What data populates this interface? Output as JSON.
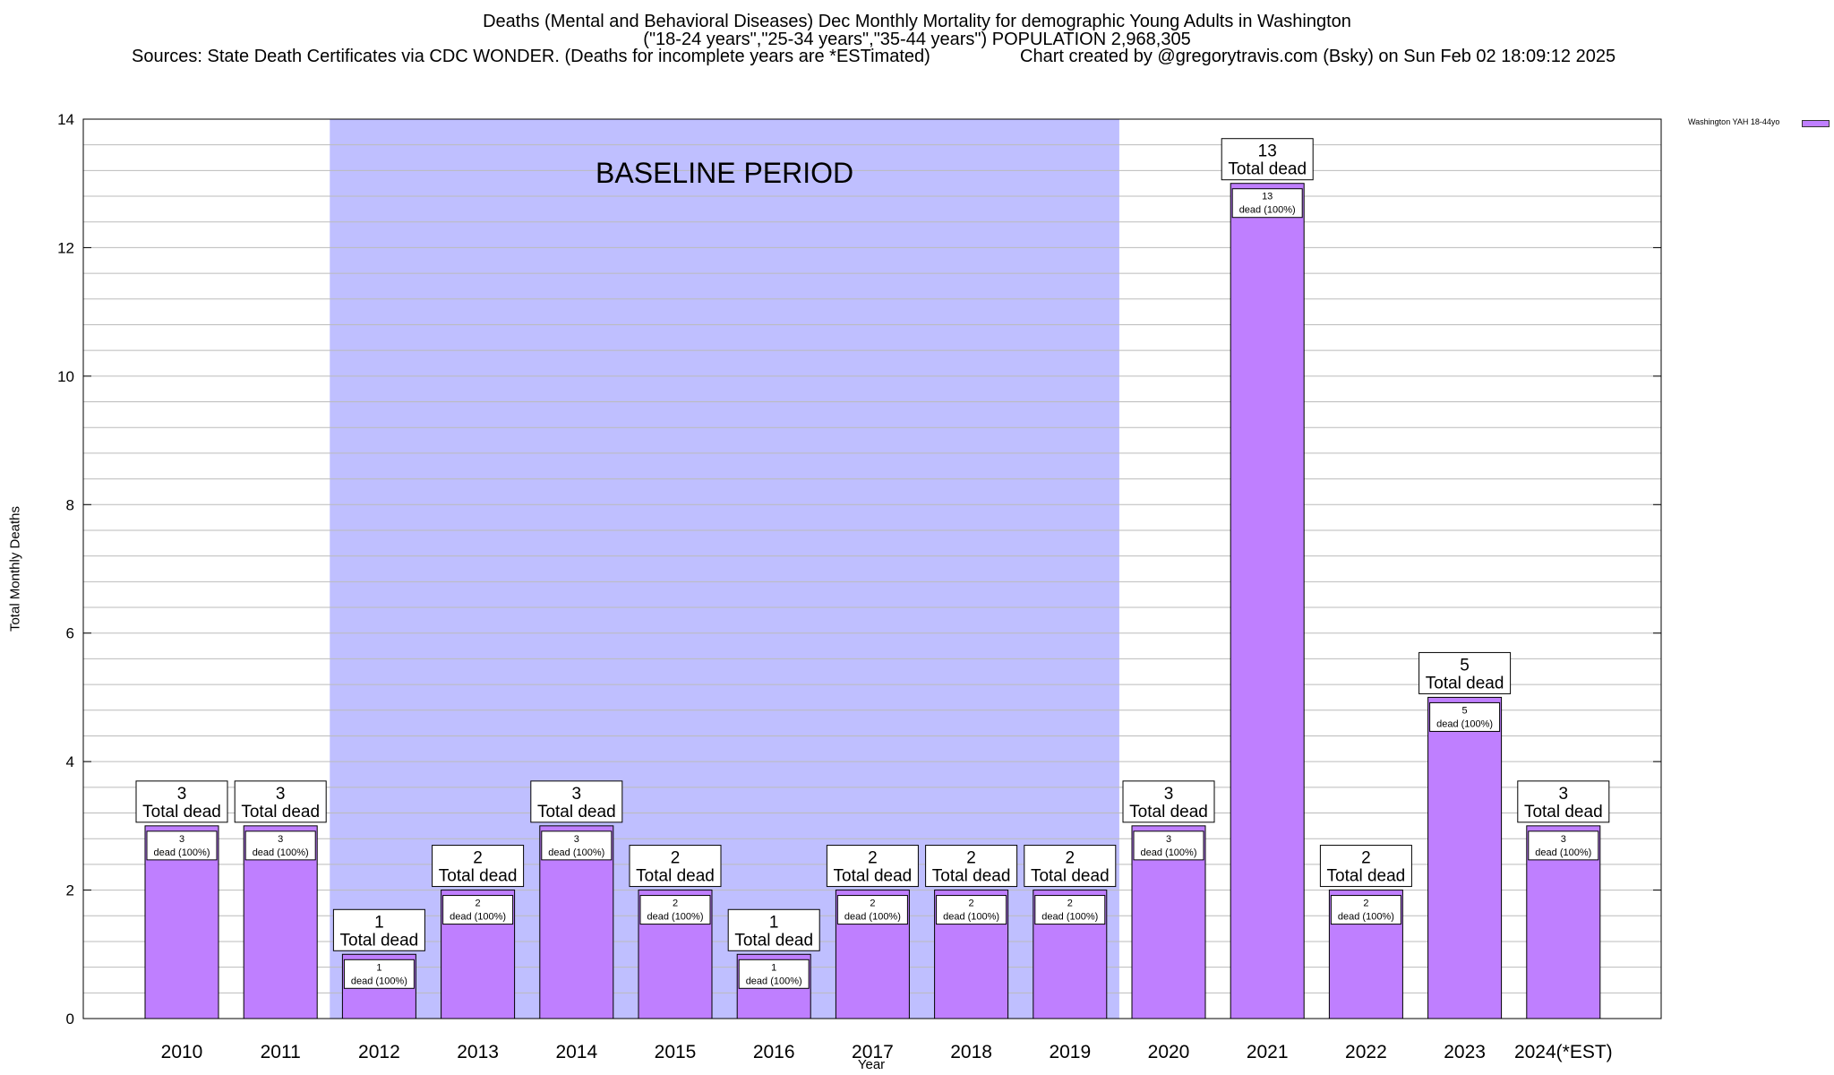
{
  "header": {
    "title_line1": "Deaths (Mental and Behavioral Diseases) Dec Monthly Mortality for demographic Young Adults in Washington",
    "title_line2": "(\"18-24 years\",\"25-34 years\",\"35-44 years\") POPULATION 2,968,305",
    "sources": "Sources: State Death Certificates via CDC WONDER. (Deaths for incomplete years are *ESTimated)",
    "credit": "Chart created by @gregorytravis.com (Bsky) on Sun Feb 02 18:09:12 2025"
  },
  "chart_data": {
    "type": "bar",
    "xlabel": "Year",
    "ylabel": "Total Monthly Deaths",
    "ylim": [
      0,
      14
    ],
    "yticks": [
      0,
      2,
      4,
      6,
      8,
      10,
      12,
      14
    ],
    "minor_grid_step": 0.4,
    "grid": true,
    "legend_position": "top-right",
    "categories": [
      "2010",
      "2011",
      "2012",
      "2013",
      "2014",
      "2015",
      "2016",
      "2017",
      "2018",
      "2019",
      "2020",
      "2021",
      "2022",
      "2023",
      "2024(*EST)"
    ],
    "series": [
      {
        "name": "Washington YAH 18-44yo",
        "color": "#bf7fff",
        "values": [
          3,
          3,
          1,
          2,
          3,
          2,
          1,
          2,
          2,
          2,
          3,
          13,
          2,
          5,
          3
        ]
      }
    ],
    "total_label_suffix": "Total dead",
    "inner_label_suffix": "dead (100%)",
    "baseline_period": {
      "label": "BASELINE PERIOD",
      "from": "2012",
      "to": "2019",
      "color": "#bfbfff"
    }
  }
}
